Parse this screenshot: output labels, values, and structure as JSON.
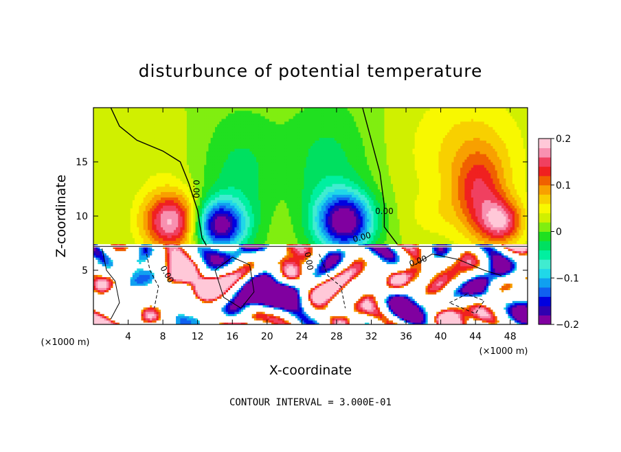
{
  "chart_data": {
    "type": "heatmap",
    "title": "disturbunce of potential temperature",
    "xlabel": "X-coordinate",
    "ylabel": "Z-coordinate",
    "x_unit": "(×1000 m)",
    "z_unit": "(×1000 m)",
    "footer": "CONTOUR INTERVAL = 3.000E-01",
    "xlim": [
      0,
      50
    ],
    "ylim": [
      0,
      20
    ],
    "x_ticks": [
      4,
      8,
      12,
      16,
      20,
      24,
      28,
      32,
      36,
      40,
      44,
      48
    ],
    "y_ticks": [
      5,
      10,
      15
    ],
    "colorbar": {
      "min": -0.2,
      "max": 0.2,
      "tick_values": [
        0.2,
        0.1,
        0,
        -0.1,
        -0.2
      ],
      "tick_labels": [
        "0.2",
        "0.1",
        "0",
        "−0.1",
        "−0.2"
      ],
      "colors": [
        "#8000a0",
        "#3000b0",
        "#0000e0",
        "#1060f0",
        "#10a0f0",
        "#20d8e8",
        "#40ecd0",
        "#00f0a0",
        "#00e060",
        "#20e020",
        "#80ee10",
        "#d0f000",
        "#f8f800",
        "#f8d000",
        "#f8a000",
        "#f06000",
        "#f02020",
        "#f04060",
        "#f890b0",
        "#ffc8d8"
      ]
    },
    "contour_labels": [
      "0.00",
      "0.00",
      "0.00",
      "0.00",
      "0.00",
      "0.00"
    ],
    "features": [
      {
        "x": 9,
        "z": 9.5,
        "value": 0.16
      },
      {
        "x": 14.5,
        "z": 9.2,
        "value": -0.19
      },
      {
        "x": 29,
        "z": 9.5,
        "value": -0.19
      },
      {
        "x": 44.5,
        "z": 12,
        "value": 0.1
      },
      {
        "x": 47,
        "z": 9.5,
        "value": 0.16
      },
      {
        "x": 19,
        "z": 15,
        "value": -0.06
      },
      {
        "x": 46,
        "z": 15,
        "value": 0.06
      }
    ]
  }
}
